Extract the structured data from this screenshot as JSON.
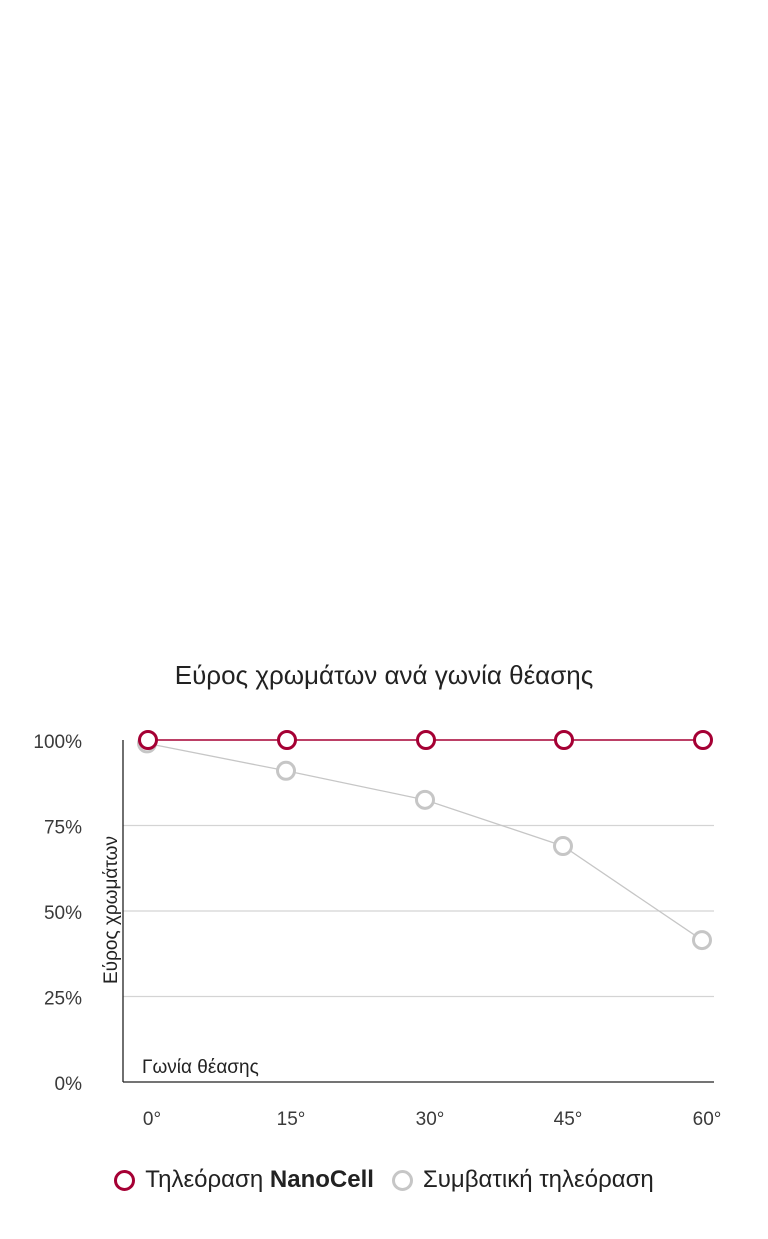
{
  "chart_data": {
    "type": "line",
    "title": "Εύρος χρωμάτων ανά γωνία θέασης",
    "xlabel": "Γωνία θέασης",
    "ylabel": "Εύρος χρωμάτων",
    "categories": [
      "0°",
      "15°",
      "30°",
      "45°",
      "60°"
    ],
    "yticks": [
      "0%",
      "25%",
      "50%",
      "75%",
      "100%"
    ],
    "ylim": [
      0,
      100
    ],
    "grid": true,
    "legend_position": "bottom",
    "series": [
      {
        "name_prefix": "Τηλεόραση ",
        "name_bold": "NanoCell",
        "color": "#a50034",
        "values": [
          100,
          100,
          100,
          100,
          100
        ]
      },
      {
        "name": "Συμβατική τηλεόραση",
        "color": "#c6c6c6",
        "values": [
          99,
          91,
          82.5,
          69,
          41.5
        ]
      }
    ]
  }
}
